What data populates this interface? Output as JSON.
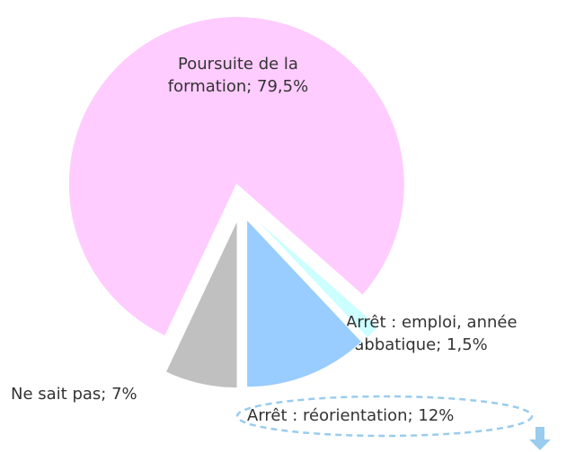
{
  "chart_data": {
    "type": "pie",
    "categories": [
      "Poursuite de la formation",
      "Arrêt : emploi, année sabbatique",
      "Arrêt : réorientation",
      "Ne sait pas"
    ],
    "values": [
      79.5,
      1.5,
      12,
      7
    ],
    "value_labels": [
      "Poursuite de la formation; 79,5%",
      "Arrêt : emploi, année sabbatique; 1,5%",
      "Arrêt : réorientation; 12%",
      "Ne sait pas; 7%"
    ],
    "colors": [
      "#ffccff",
      "#ccffff",
      "#99ccff",
      "#c0c0c0"
    ]
  }
}
